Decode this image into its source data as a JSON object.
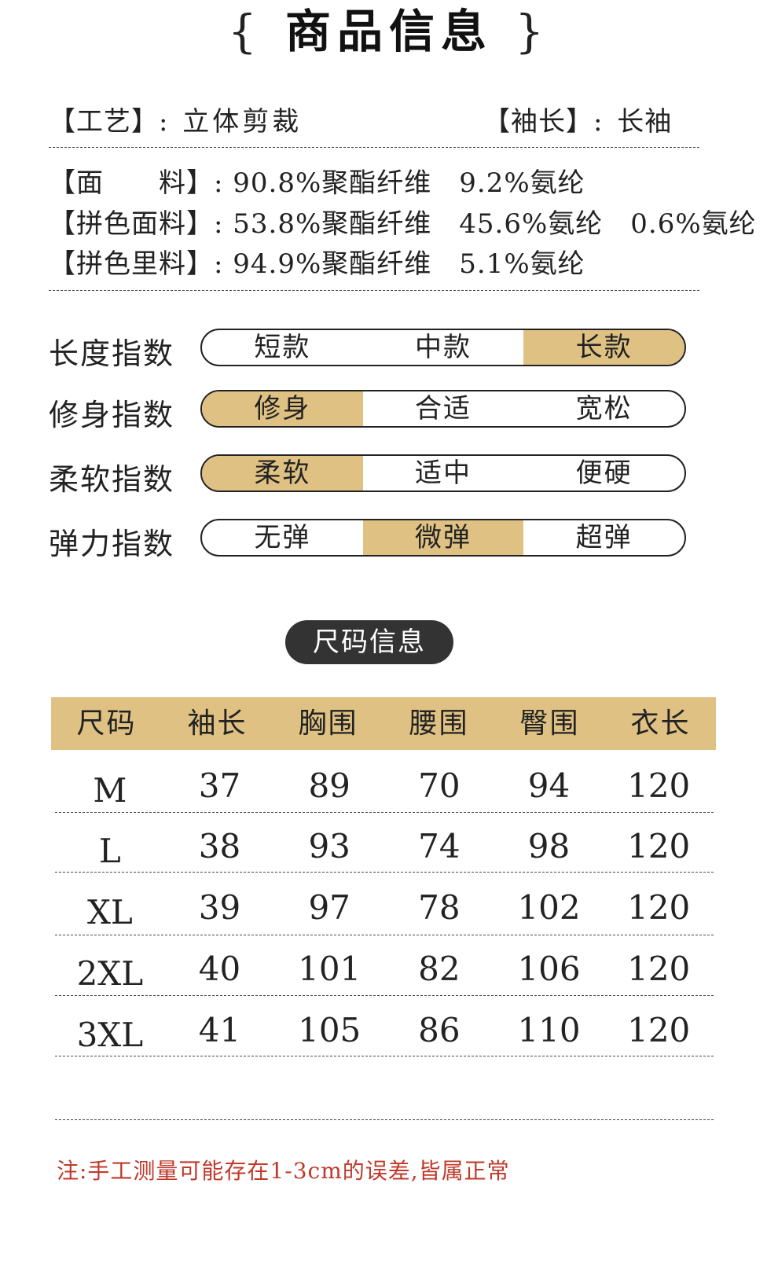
{
  "title": {
    "text": "商品信息",
    "brace_left": "{",
    "brace_right": "}"
  },
  "specs": {
    "craft_label": "【工艺】:",
    "craft_value": "立体剪裁",
    "sleeve_label": "【袖长】:",
    "sleeve_value": "长袖",
    "fabric_label": "【面　　料】:",
    "fabric_value": "90.8%聚酯纤维　9.2%氨纶",
    "patch_fabric_label": "【拼色面料】:",
    "patch_fabric_value": "53.8%聚酯纤维　45.6%氨纶　0.6%氨纶",
    "patch_lining_label": "【拼色里料】:",
    "patch_lining_value": "94.9%聚酯纤维　5.1%氨纶"
  },
  "indices": [
    {
      "label": "长度指数",
      "options": [
        "短款",
        "中款",
        "长款"
      ],
      "selected": 2
    },
    {
      "label": "修身指数",
      "options": [
        "修身",
        "合适",
        "宽松"
      ],
      "selected": 0
    },
    {
      "label": "柔软指数",
      "options": [
        "柔软",
        "适中",
        "便硬"
      ],
      "selected": 0
    },
    {
      "label": "弹力指数",
      "options": [
        "无弹",
        "微弹",
        "超弹"
      ],
      "selected": 1
    }
  ],
  "accent_color": "#dfc183",
  "size_section": {
    "title": "尺码信息"
  },
  "size_table": {
    "headers": [
      "尺码",
      "袖长",
      "胸围",
      "腰围",
      "臀围",
      "衣长"
    ],
    "rows": [
      [
        "M",
        "37",
        "89",
        "70",
        "94",
        "120"
      ],
      [
        "L",
        "38",
        "93",
        "74",
        "98",
        "120"
      ],
      [
        "XL",
        "39",
        "97",
        "78",
        "102",
        "120"
      ],
      [
        "2XL",
        "40",
        "101",
        "82",
        "106",
        "120"
      ],
      [
        "3XL",
        "41",
        "105",
        "86",
        "110",
        "120"
      ]
    ]
  },
  "note": "注:手工测量可能存在1-3cm的误差,皆属正常"
}
